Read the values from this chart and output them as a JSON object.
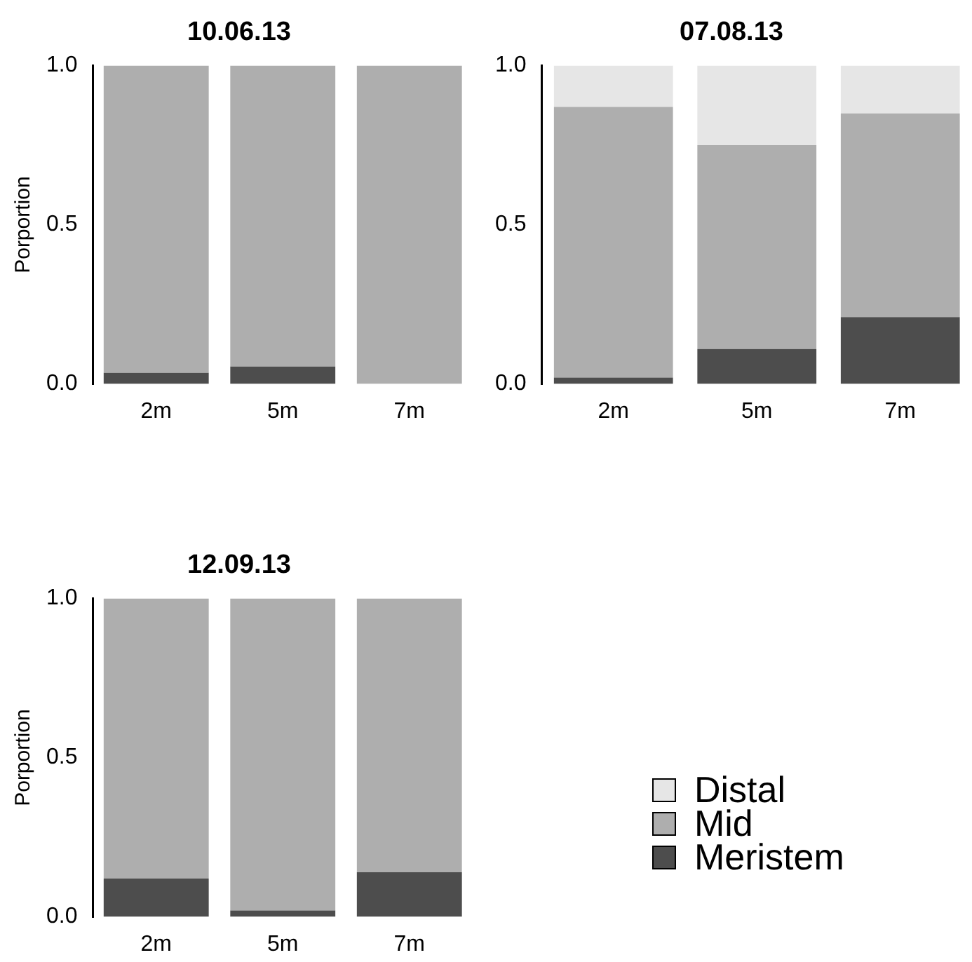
{
  "chart_data": [
    {
      "type": "bar",
      "title": "10.06.13",
      "ylabel": "Porportion",
      "categories": [
        "2m",
        "5m",
        "7m"
      ],
      "stacked": true,
      "ylim": [
        0,
        1
      ],
      "yticks": [
        {
          "value": 0,
          "label": "0.0"
        },
        {
          "value": 0.5,
          "label": "0.5"
        },
        {
          "value": 1,
          "label": "1.0"
        }
      ],
      "grid": false,
      "series": [
        {
          "color": "#4d4d4d",
          "values": [
            0.035,
            0.055,
            0
          ]
        },
        {
          "color": "#aeaeae",
          "values": [
            0.965,
            0.945,
            1
          ]
        },
        {
          "color": "#e6e6e6",
          "values": [
            0,
            0,
            0
          ]
        }
      ]
    },
    {
      "type": "bar",
      "title": "07.08.13",
      "categories": [
        "2m",
        "5m",
        "7m"
      ],
      "stacked": true,
      "ylim": [
        0,
        1
      ],
      "yticks": [
        {
          "value": 0,
          "label": "0.0"
        },
        {
          "value": 0.5,
          "label": "0.5"
        },
        {
          "value": 1,
          "label": "1.0"
        }
      ],
      "grid": false,
      "series": [
        {
          "color": "#4d4d4d",
          "values": [
            0.02,
            0.11,
            0.21
          ]
        },
        {
          "color": "#aeaeae",
          "values": [
            0.85,
            0.64,
            0.64
          ]
        },
        {
          "color": "#e6e6e6",
          "values": [
            0.13,
            0.25,
            0.15
          ]
        }
      ]
    },
    {
      "type": "bar",
      "title": "12.09.13",
      "ylabel": "Porportion",
      "categories": [
        "2m",
        "5m",
        "7m"
      ],
      "stacked": true,
      "ylim": [
        0,
        1
      ],
      "yticks": [
        {
          "value": 0,
          "label": "0.0"
        },
        {
          "value": 0.5,
          "label": "0.5"
        },
        {
          "value": 1,
          "label": "1.0"
        }
      ],
      "grid": false,
      "legend": "right",
      "series": [
        {
          "name": "Meristem",
          "color": "#4d4d4d",
          "values": [
            0.12,
            0.02,
            0.14
          ]
        },
        {
          "name": "Mid",
          "color": "#aeaeae",
          "values": [
            0.88,
            0.98,
            0.86
          ]
        },
        {
          "name": "Distal",
          "color": "#e6e6e6",
          "values": [
            0,
            0,
            0
          ]
        }
      ]
    }
  ]
}
